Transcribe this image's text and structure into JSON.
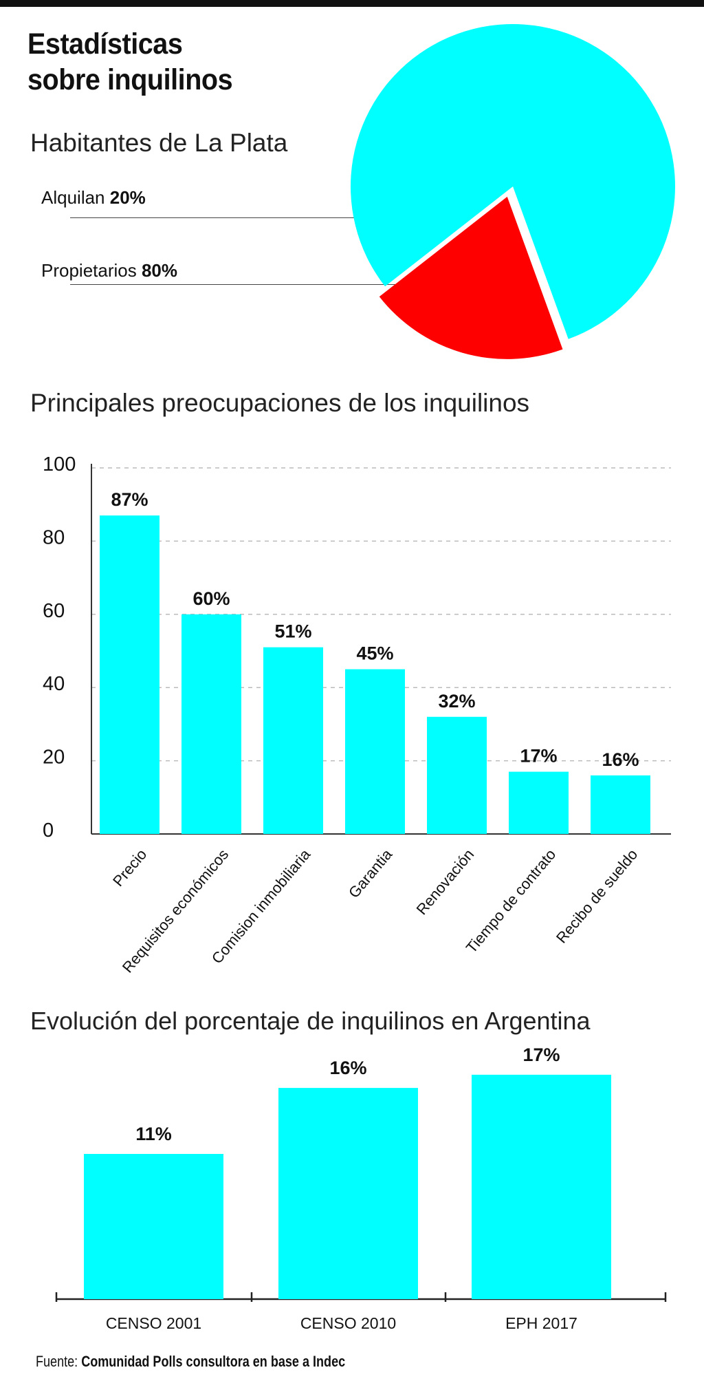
{
  "title_line1": "Estadísticas",
  "title_line2": "sobre inquilinos",
  "colors": {
    "cyan": "#00ffff",
    "red": "#ff0000",
    "text": "#111111",
    "grid": "#bbbbbb"
  },
  "chart_data": [
    {
      "type": "pie",
      "title": "Habitantes de La Plata",
      "slices": [
        {
          "label": "Alquilan",
          "value_text": "20%",
          "value": 20,
          "color": "#ff0000"
        },
        {
          "label": "Propietarios",
          "value_text": "80%",
          "value": 80,
          "color": "#00ffff"
        }
      ]
    },
    {
      "type": "bar",
      "title": "Principales preocupaciones de los inquilinos",
      "categories": [
        "Precio",
        "Requisitos económicos",
        "Comision inmobiliaria",
        "Garantia",
        "Renovación",
        "Tiempo de contrato",
        "Recibo de sueldo"
      ],
      "values": [
        87,
        60,
        51,
        45,
        32,
        17,
        16
      ],
      "value_labels": [
        "87%",
        "60%",
        "51%",
        "45%",
        "32%",
        "17%",
        "16%"
      ],
      "ylim": [
        0,
        100
      ],
      "yticks": [
        "0",
        "20",
        "40",
        "60",
        "80",
        "100"
      ],
      "grid": true
    },
    {
      "type": "bar",
      "title": "Evolución del porcentaje de inquilinos en Argentina",
      "categories": [
        "CENSO 2001",
        "CENSO 2010",
        "EPH 2017"
      ],
      "values": [
        11,
        16,
        17
      ],
      "value_labels": [
        "11%",
        "16%",
        "17%"
      ]
    }
  ],
  "source_label": "Fuente:",
  "source_text": "Comunidad Polls consultora en base a Indec"
}
